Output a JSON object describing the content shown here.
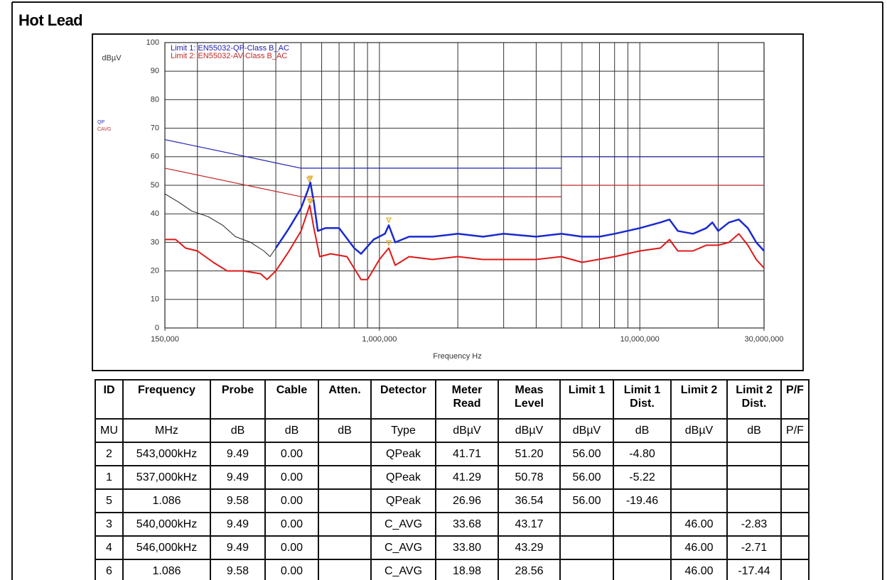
{
  "title": "Hot Lead",
  "chart_data": {
    "type": "line",
    "ylabel": "dBµV",
    "xlabel": "Frequency Hz",
    "side_labels": [
      {
        "text": "QP",
        "color": "#2b2bb0"
      },
      {
        "text": "CAVG",
        "color": "#c03030"
      }
    ],
    "log_x": true,
    "xlim": [
      150000,
      30000000
    ],
    "xticks": [
      {
        "value": 150000,
        "label": "150,000"
      },
      {
        "value": 1000000,
        "label": "1,000,000"
      },
      {
        "value": 10000000,
        "label": "10,000,000"
      },
      {
        "value": 30000000,
        "label": "30,000,000"
      }
    ],
    "xgrid": [
      200000,
      300000,
      400000,
      500000,
      600000,
      700000,
      800000,
      900000,
      1000000,
      2000000,
      3000000,
      4000000,
      5000000,
      6000000,
      7000000,
      8000000,
      9000000,
      10000000,
      20000000
    ],
    "ylim": [
      0,
      100
    ],
    "yticks": [
      0,
      10,
      20,
      30,
      40,
      50,
      60,
      70,
      80,
      90,
      100
    ],
    "grid": true,
    "series": [
      {
        "name": "Limit 1: EN55032-QP-Class B_AC",
        "color": "#2020b0",
        "width": 1.2,
        "x": [
          150000,
          500000,
          5000000,
          5000000,
          5000000,
          30000000
        ],
        "values": [
          66,
          56,
          56,
          null,
          60,
          60
        ]
      },
      {
        "name": "Limit 2: EN55032-AV-Class B_AC",
        "color": "#c02828",
        "width": 1.2,
        "x": [
          150000,
          500000,
          5000000,
          5000000,
          5000000,
          30000000
        ],
        "values": [
          56,
          46,
          46,
          null,
          50,
          50
        ]
      },
      {
        "color": "#222222",
        "width": 1,
        "x": [
          150000,
          170000,
          190000,
          220000,
          250000,
          280000,
          320000,
          360000,
          380000,
          400000
        ],
        "values": [
          47,
          44,
          41,
          39,
          36,
          32,
          30,
          27,
          25,
          28
        ]
      },
      {
        "color": "#1a2ad0",
        "width": 2.5,
        "x": [
          400000,
          450000,
          500000,
          530000,
          543000,
          560000,
          580000,
          620000,
          700000,
          800000,
          850000,
          950000,
          1050000,
          1086000,
          1150000,
          1300000,
          1600000,
          2000000,
          2500000,
          3000000,
          4000000,
          5000000,
          6000000,
          7000000,
          8000000,
          10000000,
          12000000,
          13000000,
          14000000,
          16000000,
          18000000,
          19000000,
          20000000,
          22000000,
          24000000,
          26000000,
          28000000,
          30000000
        ],
        "values": [
          28,
          35,
          42,
          48,
          51,
          44,
          34,
          35,
          35,
          28,
          26,
          31,
          33,
          36,
          30,
          32,
          32,
          33,
          32,
          33,
          32,
          33,
          32,
          32,
          33,
          35,
          37,
          38,
          34,
          33,
          35,
          37,
          34,
          37,
          38,
          35,
          30,
          27
        ]
      },
      {
        "color": "#e01818",
        "width": 2,
        "x": [
          150000,
          165000,
          180000,
          200000,
          230000,
          260000,
          300000,
          350000,
          370000,
          400000,
          450000,
          500000,
          540000,
          560000,
          590000,
          650000,
          750000,
          850000,
          900000,
          1000000,
          1086000,
          1150000,
          1300000,
          1600000,
          2000000,
          2500000,
          3000000,
          4000000,
          5000000,
          6000000,
          8000000,
          10000000,
          12000000,
          13000000,
          14000000,
          16000000,
          18000000,
          20000000,
          22000000,
          24000000,
          26000000,
          28000000,
          30000000
        ],
        "values": [
          31,
          31,
          28,
          27,
          23,
          20,
          20,
          19,
          17,
          20,
          27,
          34,
          43,
          35,
          25,
          26,
          25,
          17,
          17,
          24,
          28,
          22,
          25,
          24,
          25,
          24,
          24,
          24,
          25,
          23,
          25,
          27,
          28,
          31,
          27,
          27,
          29,
          29,
          30,
          33,
          29,
          24,
          21
        ]
      }
    ],
    "markers": {
      "x": [
        543000,
        537000,
        1086000,
        540000,
        546000,
        1086000
      ],
      "values": [
        51.2,
        50.78,
        36.54,
        43.17,
        43.29,
        28.56
      ],
      "color": "#e0b030"
    }
  },
  "table": {
    "header": [
      "ID",
      "Frequency",
      "Probe",
      "Cable",
      "Atten.",
      "Detector",
      "Meter Read",
      "Meas Level",
      "Limit 1",
      "Limit 1 Dist.",
      "Limit 2",
      "Limit 2 Dist.",
      "P/F"
    ],
    "units": [
      "MU",
      "MHz",
      "dB",
      "dB",
      "dB",
      "Type",
      "dBµV",
      "dBµV",
      "dBµV",
      "dB",
      "dBµV",
      "dB",
      "P/F"
    ],
    "rows": [
      [
        "2",
        "543,000kHz",
        "9.49",
        "0.00",
        "",
        "QPeak",
        "41.71",
        "51.20",
        "56.00",
        "-4.80",
        "",
        "",
        ""
      ],
      [
        "1",
        "537,000kHz",
        "9.49",
        "0.00",
        "",
        "QPeak",
        "41.29",
        "50.78",
        "56.00",
        "-5.22",
        "",
        "",
        ""
      ],
      [
        "5",
        "1.086",
        "9.58",
        "0.00",
        "",
        "QPeak",
        "26.96",
        "36.54",
        "56.00",
        "-19.46",
        "",
        "",
        ""
      ],
      [
        "3",
        "540,000kHz",
        "9.49",
        "0.00",
        "",
        "C_AVG",
        "33.68",
        "43.17",
        "",
        "",
        "46.00",
        "-2.83",
        ""
      ],
      [
        "4",
        "546,000kHz",
        "9.49",
        "0.00",
        "",
        "C_AVG",
        "33.80",
        "43.29",
        "",
        "",
        "46.00",
        "-2.71",
        ""
      ],
      [
        "6",
        "1.086",
        "9.58",
        "0.00",
        "",
        "C_AVG",
        "18.98",
        "28.56",
        "",
        "",
        "46.00",
        "-17.44",
        ""
      ]
    ]
  }
}
